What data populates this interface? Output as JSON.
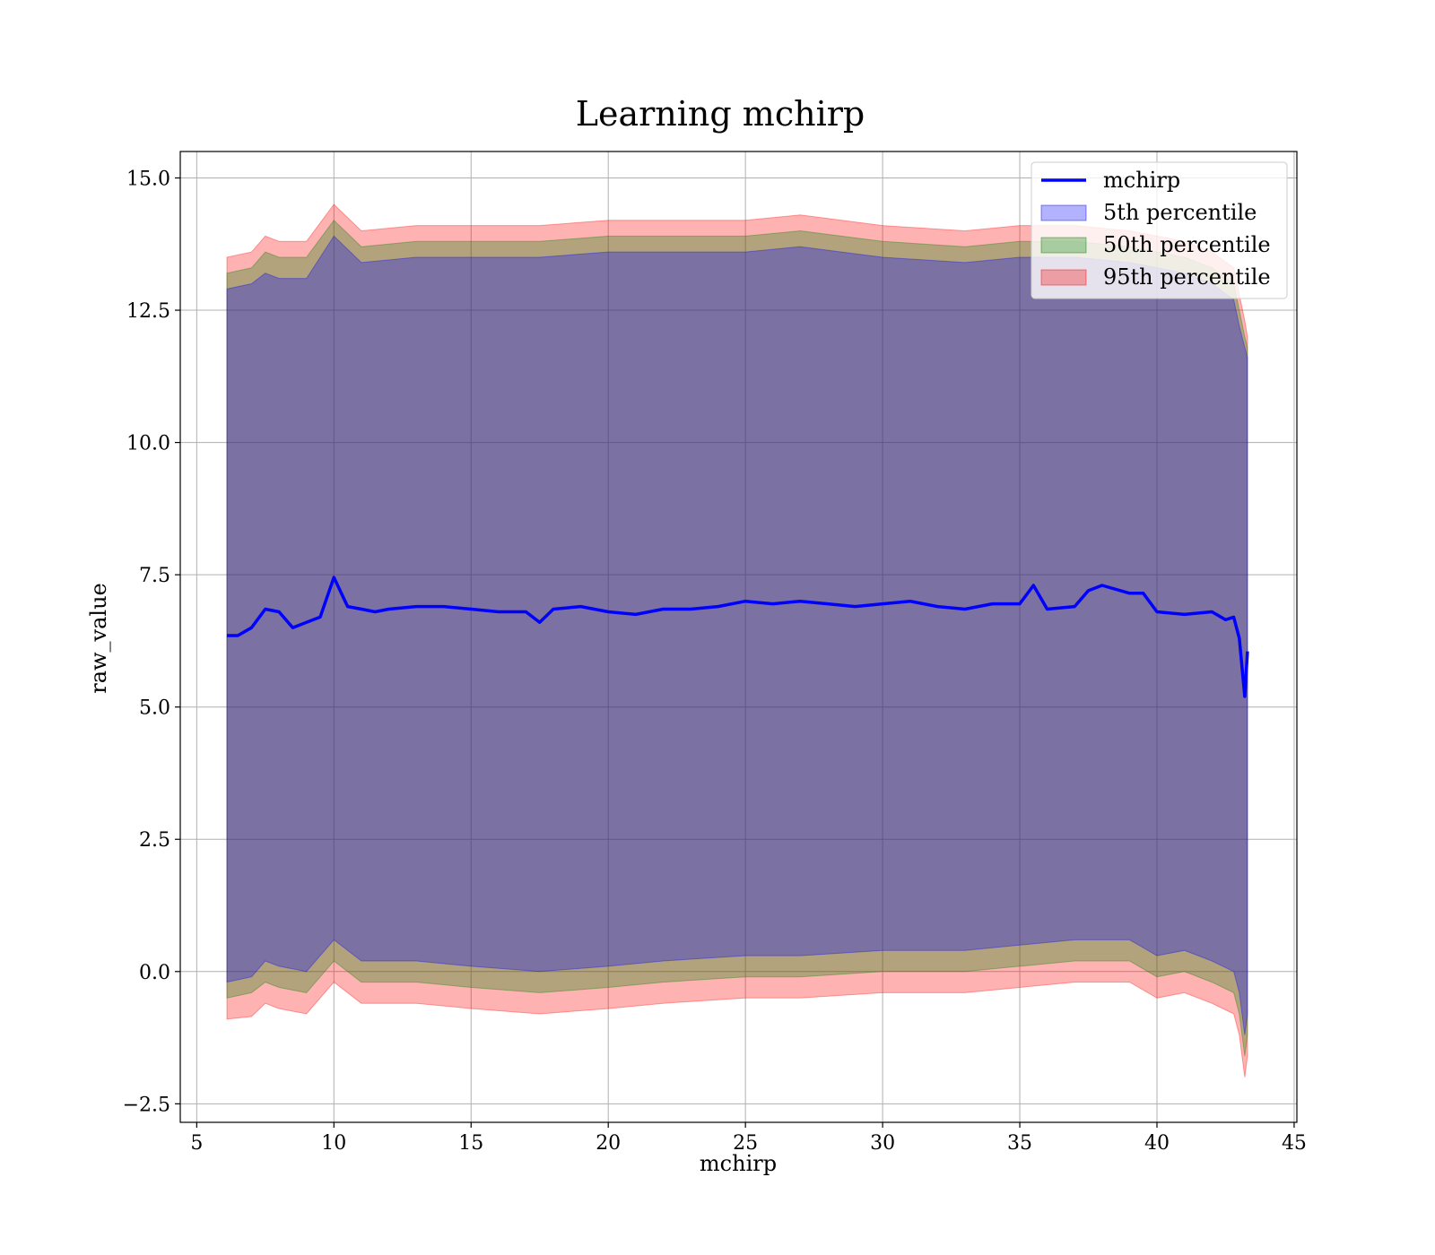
{
  "chart_data": {
    "type": "line",
    "title": "Learning mchirp",
    "xlabel": "mchirp",
    "ylabel": "raw_value",
    "xlim": [
      4.4,
      45.1
    ],
    "ylim": [
      -2.85,
      15.5
    ],
    "xticks": [
      5,
      10,
      15,
      20,
      25,
      30,
      35,
      40,
      45
    ],
    "xtick_labels": [
      "5",
      "10",
      "15",
      "20",
      "25",
      "30",
      "35",
      "40",
      "45"
    ],
    "yticks": [
      -2.5,
      0.0,
      2.5,
      5.0,
      7.5,
      10.0,
      12.5,
      15.0
    ],
    "ytick_labels": [
      "−2.5",
      "0.0",
      "2.5",
      "5.0",
      "7.5",
      "10.0",
      "12.5",
      "15.0"
    ],
    "grid": true,
    "legend_position": "top-right",
    "line": {
      "name": "mchirp",
      "color": "#0000ff",
      "x": [
        6.1,
        6.5,
        7.0,
        7.5,
        8.0,
        8.5,
        9.0,
        9.5,
        10.0,
        10.5,
        11.0,
        11.5,
        12.0,
        13.0,
        14.0,
        15.0,
        16.0,
        17.0,
        17.5,
        18.0,
        19.0,
        20.0,
        21.0,
        22.0,
        23.0,
        24.0,
        25.0,
        26.0,
        27.0,
        28.0,
        29.0,
        30.0,
        31.0,
        32.0,
        33.0,
        34.0,
        35.0,
        35.5,
        36.0,
        37.0,
        37.5,
        38.0,
        39.0,
        39.5,
        40.0,
        41.0,
        42.0,
        42.5,
        42.8,
        43.0,
        43.2,
        43.3
      ],
      "y": [
        6.35,
        6.35,
        6.5,
        6.85,
        6.8,
        6.5,
        6.6,
        6.7,
        7.45,
        6.9,
        6.85,
        6.8,
        6.85,
        6.9,
        6.9,
        6.85,
        6.8,
        6.8,
        6.6,
        6.85,
        6.9,
        6.8,
        6.75,
        6.85,
        6.85,
        6.9,
        7.0,
        6.95,
        7.0,
        6.95,
        6.9,
        6.95,
        7.0,
        6.9,
        6.85,
        6.95,
        6.95,
        7.3,
        6.85,
        6.9,
        7.2,
        7.3,
        7.15,
        7.15,
        6.8,
        6.75,
        6.8,
        6.65,
        6.7,
        6.3,
        5.2,
        6.05
      ]
    },
    "bands": [
      {
        "name": "95th percentile",
        "color": "#ff0000",
        "opacity": 0.3,
        "x": [
          6.1,
          7.0,
          7.5,
          8.0,
          9.0,
          10.0,
          11.0,
          13.0,
          15.0,
          17.5,
          20.0,
          22.0,
          25.0,
          27.0,
          30.0,
          33.0,
          35.0,
          37.0,
          39.0,
          40.0,
          41.0,
          42.0,
          42.8,
          43.0,
          43.2,
          43.3
        ],
        "upper": [
          13.5,
          13.6,
          13.9,
          13.8,
          13.8,
          14.5,
          14.0,
          14.1,
          14.1,
          14.1,
          14.2,
          14.2,
          14.2,
          14.3,
          14.1,
          14.0,
          14.1,
          14.1,
          14.0,
          13.9,
          13.8,
          13.6,
          13.3,
          12.8,
          12.3,
          12.0
        ],
        "lower": [
          -0.9,
          -0.85,
          -0.6,
          -0.7,
          -0.8,
          -0.2,
          -0.6,
          -0.6,
          -0.7,
          -0.8,
          -0.7,
          -0.6,
          -0.5,
          -0.5,
          -0.4,
          -0.4,
          -0.3,
          -0.2,
          -0.2,
          -0.5,
          -0.4,
          -0.6,
          -0.8,
          -1.2,
          -2.0,
          -1.6
        ]
      },
      {
        "name": "50th percentile",
        "color": "#008000",
        "opacity": 0.3,
        "x": [
          6.1,
          7.0,
          7.5,
          8.0,
          9.0,
          10.0,
          11.0,
          13.0,
          15.0,
          17.5,
          20.0,
          22.0,
          25.0,
          27.0,
          30.0,
          33.0,
          35.0,
          37.0,
          39.0,
          40.0,
          41.0,
          42.0,
          42.8,
          43.0,
          43.2,
          43.3
        ],
        "upper": [
          13.2,
          13.3,
          13.6,
          13.5,
          13.5,
          14.2,
          13.7,
          13.8,
          13.8,
          13.8,
          13.9,
          13.9,
          13.9,
          14.0,
          13.8,
          13.7,
          13.8,
          13.8,
          13.7,
          13.6,
          13.5,
          13.3,
          13.0,
          12.5,
          12.0,
          11.8
        ],
        "lower": [
          -0.5,
          -0.4,
          -0.2,
          -0.3,
          -0.4,
          0.2,
          -0.2,
          -0.2,
          -0.3,
          -0.4,
          -0.3,
          -0.2,
          -0.1,
          -0.1,
          0.0,
          0.0,
          0.1,
          0.2,
          0.2,
          -0.1,
          0.0,
          -0.2,
          -0.4,
          -0.8,
          -1.6,
          -1.2
        ]
      },
      {
        "name": "5th percentile",
        "color": "#0000ff",
        "opacity": 0.3,
        "x": [
          6.1,
          7.0,
          7.5,
          8.0,
          9.0,
          10.0,
          11.0,
          13.0,
          15.0,
          17.5,
          20.0,
          22.0,
          25.0,
          27.0,
          30.0,
          33.0,
          35.0,
          37.0,
          39.0,
          40.0,
          41.0,
          42.0,
          42.8,
          43.0,
          43.2,
          43.3
        ],
        "upper": [
          12.9,
          13.0,
          13.2,
          13.1,
          13.1,
          13.9,
          13.4,
          13.5,
          13.5,
          13.5,
          13.6,
          13.6,
          13.6,
          13.7,
          13.5,
          13.4,
          13.5,
          13.5,
          13.4,
          13.3,
          13.2,
          13.0,
          12.7,
          12.2,
          11.8,
          11.6
        ],
        "lower": [
          -0.2,
          -0.1,
          0.2,
          0.1,
          0.0,
          0.6,
          0.2,
          0.2,
          0.1,
          0.0,
          0.1,
          0.2,
          0.3,
          0.3,
          0.4,
          0.4,
          0.5,
          0.6,
          0.6,
          0.3,
          0.4,
          0.2,
          0.0,
          -0.4,
          -1.2,
          -0.8
        ]
      }
    ],
    "legend": [
      {
        "label": "mchirp",
        "kind": "line",
        "color": "#0000ff"
      },
      {
        "label": "5th percentile",
        "kind": "patch",
        "color": "#0000ff"
      },
      {
        "label": "50th percentile",
        "kind": "patch",
        "color": "#008000"
      },
      {
        "label": "95th percentile",
        "kind": "patch",
        "color": "#ff0000"
      }
    ]
  }
}
